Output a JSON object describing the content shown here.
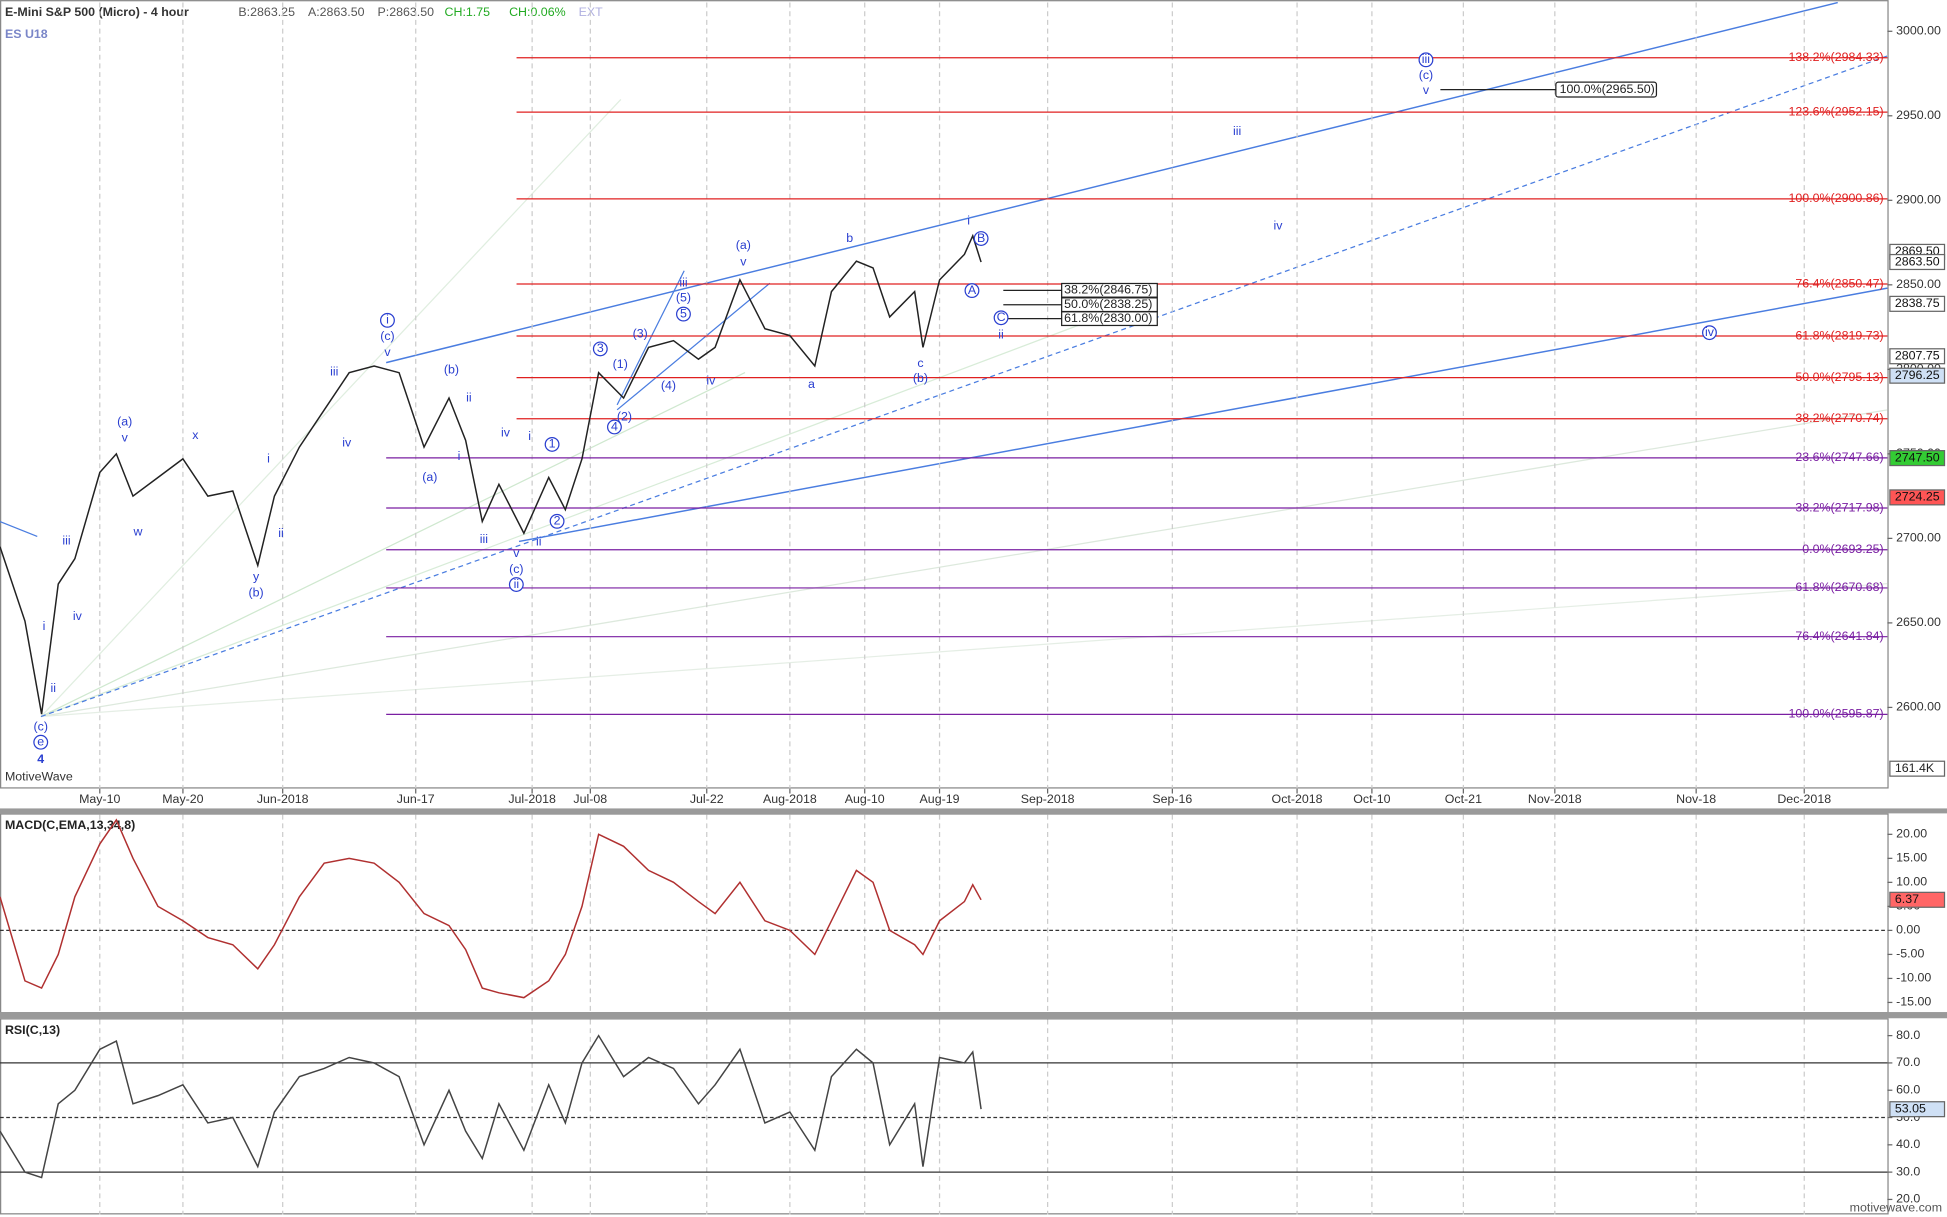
{
  "header": {
    "title": "E-Mini S&P 500 (Micro) - 4 hour",
    "symbol": "ES U18",
    "quote": [
      {
        "text": "B:2863.25",
        "color": "#555555"
      },
      {
        "text": "A:2863.50",
        "color": "#555555"
      },
      {
        "text": "P:2863.50",
        "color": "#555555"
      },
      {
        "text": "CH:1.75",
        "color": "#22aa22"
      },
      {
        "text": "CH:0.06%",
        "color": "#22aa22"
      },
      {
        "text": "EXT",
        "color": "#b0b0e0"
      }
    ],
    "watermark": "MotiveWave",
    "footer": "motivewave.com",
    "volume_label": "161.4K"
  },
  "chart_data": [
    {
      "type": "line",
      "xlim": [
        118,
        345
      ],
      "ylim": [
        2552,
        3017
      ],
      "xticks": [
        {
          "value": 130,
          "label": "May-10"
        },
        {
          "value": 140,
          "label": "May-20"
        },
        {
          "value": 152,
          "label": "Jun-2018"
        },
        {
          "value": 168,
          "label": "Jun-17"
        },
        {
          "value": 182,
          "label": "Jul-2018"
        },
        {
          "value": 189,
          "label": "Jul-08"
        },
        {
          "value": 203,
          "label": "Jul-22"
        },
        {
          "value": 213,
          "label": "Aug-2018"
        },
        {
          "value": 222,
          "label": "Aug-10"
        },
        {
          "value": 231,
          "label": "Aug-19"
        },
        {
          "value": 244,
          "label": "Sep-2018"
        },
        {
          "value": 259,
          "label": "Sep-16"
        },
        {
          "value": 274,
          "label": "Oct-2018"
        },
        {
          "value": 283,
          "label": "Oct-10"
        },
        {
          "value": 294,
          "label": "Oct-21"
        },
        {
          "value": 305,
          "label": "Nov-2018"
        },
        {
          "value": 322,
          "label": "Nov-18"
        },
        {
          "value": 335,
          "label": "Dec-2018"
        }
      ],
      "yticks": [
        {
          "value": 2600,
          "label": "2600.00"
        },
        {
          "value": 2650,
          "label": "2650.00"
        },
        {
          "value": 2700,
          "label": "2700.00"
        },
        {
          "value": 2750,
          "label": "2750.00"
        },
        {
          "value": 2800,
          "label": "2800.00"
        },
        {
          "value": 2850,
          "label": "2850.00"
        },
        {
          "value": 2900,
          "label": "2900.00"
        },
        {
          "value": 2950,
          "label": "2950.00"
        },
        {
          "value": 3000,
          "label": "3000.00"
        }
      ],
      "x": [
        118,
        121,
        123,
        125,
        127,
        130,
        132,
        134,
        137,
        140,
        143,
        146,
        149,
        151,
        154,
        157,
        160,
        163,
        166,
        169,
        172,
        174,
        176,
        178,
        181,
        184,
        186,
        188,
        190,
        193,
        196,
        199,
        202,
        204,
        207,
        210,
        213,
        216,
        218,
        221,
        223,
        225,
        228,
        229,
        231,
        234,
        235,
        236
      ],
      "series": [
        {
          "name": "ES U18",
          "color": "#222222",
          "values": [
            2695,
            2651,
            2596,
            2673,
            2688,
            2739,
            2750,
            2725,
            2736,
            2747,
            2725,
            2728,
            2684,
            2725,
            2754,
            2776,
            2798,
            2802,
            2798,
            2754,
            2783,
            2758,
            2710,
            2732,
            2703,
            2736,
            2717,
            2747,
            2798,
            2783,
            2813,
            2817,
            2806,
            2813,
            2853,
            2824,
            2820,
            2802,
            2846,
            2864,
            2860,
            2831,
            2846,
            2813,
            2853,
            2868,
            2879,
            2863.5
          ]
        }
      ],
      "fibs": [
        {
          "label": "138.2%(2984.33)",
          "value": 2984.33,
          "color": "#e02020"
        },
        {
          "label": "123.6%(2952.15)",
          "value": 2952.15,
          "color": "#e02020"
        },
        {
          "label": "100.0%(2900.86)",
          "value": 2900.86,
          "color": "#e02020"
        },
        {
          "label": "76.4%(2850.47)",
          "value": 2850.47,
          "color": "#e02020"
        },
        {
          "label": "61.8%(2819.73)",
          "value": 2819.73,
          "color": "#e02020"
        },
        {
          "label": "50.0%(2795.13)",
          "value": 2795.13,
          "color": "#e02020"
        },
        {
          "label": "38.2%(2770.74)",
          "value": 2770.74,
          "color": "#e02020"
        },
        {
          "label": "23.6%(2747.66)",
          "value": 2747.66,
          "color": "#7a1fa2"
        },
        {
          "label": "38.2%(2717.98)",
          "value": 2717.98,
          "color": "#7a1fa2"
        },
        {
          "label": "0.0%(2693.25)",
          "value": 2693.25,
          "color": "#7a1fa2"
        },
        {
          "label": "61.8%(2670.68)",
          "value": 2670.68,
          "color": "#7a1fa2"
        },
        {
          "label": "76.4%(2641.84)",
          "value": 2641.84,
          "color": "#7a1fa2"
        },
        {
          "label": "100.0%(2595.87)",
          "value": 2595.87,
          "color": "#7a1fa2"
        }
      ],
      "retrace": [
        {
          "label": "38.2%(2846.75)",
          "value": 2846.75
        },
        {
          "label": "50.0%(2838.25)",
          "value": 2838.25
        },
        {
          "label": "61.8%(2830.00)",
          "value": 2830.0
        }
      ],
      "target": {
        "label": "100.0%(2965.50)",
        "value": 2965.5
      },
      "price_tags": [
        {
          "label": "2869.50",
          "value": 2869.5,
          "color": "#ffffff"
        },
        {
          "label": "2863.50",
          "value": 2863.5,
          "color": "#ffffff"
        },
        {
          "label": "2838.75",
          "value": 2838.75,
          "color": "#ffffff"
        },
        {
          "label": "2807.75",
          "value": 2807.75,
          "color": "#ffffff"
        },
        {
          "label": "2796.25",
          "value": 2796.25,
          "color": "#cfe0f5"
        },
        {
          "label": "2747.50",
          "value": 2747.5,
          "color": "#33cc33"
        },
        {
          "label": "2724.25",
          "value": 2724.25,
          "color": "#ff5555"
        }
      ],
      "annotations": [
        {
          "text": "4",
          "x": 122.9,
          "y": 2569.2,
          "bold": true
        },
        {
          "text": "e",
          "x": 122.9,
          "y": 2579.4,
          "circled": true
        },
        {
          "text": "(c)",
          "x": 122.9,
          "y": 2588.2
        },
        {
          "text": "ii",
          "x": 124.4,
          "y": 2611.0
        },
        {
          "text": "i",
          "x": 123.3,
          "y": 2647.7
        },
        {
          "text": "iv",
          "x": 127.3,
          "y": 2653.6
        },
        {
          "text": "iii",
          "x": 126.0,
          "y": 2698.3
        },
        {
          "text": "(a)",
          "x": 133.0,
          "y": 2768.8
        },
        {
          "text": "v",
          "x": 133.0,
          "y": 2759.3
        },
        {
          "text": "w",
          "x": 134.6,
          "y": 2703.5
        },
        {
          "text": "x",
          "x": 141.5,
          "y": 2760.7
        },
        {
          "text": "y",
          "x": 148.8,
          "y": 2677.1
        },
        {
          "text": "(b)",
          "x": 148.8,
          "y": 2667.5
        },
        {
          "text": "i",
          "x": 150.3,
          "y": 2746.8
        },
        {
          "text": "ii",
          "x": 151.8,
          "y": 2702.8
        },
        {
          "text": "iii",
          "x": 158.2,
          "y": 2798.2
        },
        {
          "text": "iv",
          "x": 159.7,
          "y": 2756.3
        },
        {
          "text": "i",
          "x": 164.6,
          "y": 2829.0,
          "circled": true
        },
        {
          "text": "(c)",
          "x": 164.6,
          "y": 2819.4
        },
        {
          "text": "v",
          "x": 164.6,
          "y": 2809.9
        },
        {
          "text": "(b)",
          "x": 172.3,
          "y": 2799.6
        },
        {
          "text": "ii",
          "x": 174.4,
          "y": 2782.8
        },
        {
          "text": "i",
          "x": 173.2,
          "y": 2748.3
        },
        {
          "text": "(a)",
          "x": 169.7,
          "y": 2735.8
        },
        {
          "text": "iii",
          "x": 176.2,
          "y": 2699.1
        },
        {
          "text": "iv",
          "x": 178.8,
          "y": 2762.2
        },
        {
          "text": "i",
          "x": 181.7,
          "y": 2760.0
        },
        {
          "text": "ii",
          "x": 182.8,
          "y": 2697.6
        },
        {
          "text": "v",
          "x": 180.1,
          "y": 2691.0
        },
        {
          "text": "(c)",
          "x": 180.1,
          "y": 2681.5
        },
        {
          "text": "ii",
          "x": 180.1,
          "y": 2672.7,
          "circled": true
        },
        {
          "text": "1",
          "x": 184.4,
          "y": 2755.6,
          "circled": true
        },
        {
          "text": "2",
          "x": 185.0,
          "y": 2710.1,
          "circled": true
        },
        {
          "text": "3",
          "x": 190.2,
          "y": 2812.1,
          "circled": true
        },
        {
          "text": "(1)",
          "x": 192.6,
          "y": 2802.6
        },
        {
          "text": "4",
          "x": 191.9,
          "y": 2765.9,
          "circled": true
        },
        {
          "text": "(2)",
          "x": 193.1,
          "y": 2771.7
        },
        {
          "text": "(3)",
          "x": 195.0,
          "y": 2820.9
        },
        {
          "text": "5",
          "x": 200.2,
          "y": 2832.7,
          "circled": true
        },
        {
          "text": "(5)",
          "x": 200.2,
          "y": 2842.2
        },
        {
          "text": "iii",
          "x": 200.2,
          "y": 2851.0
        },
        {
          "text": "(4)",
          "x": 198.4,
          "y": 2790.1
        },
        {
          "text": "iv",
          "x": 203.5,
          "y": 2793.0
        },
        {
          "text": "(a)",
          "x": 207.4,
          "y": 2873.0
        },
        {
          "text": "v",
          "x": 207.4,
          "y": 2863.5
        },
        {
          "text": "a",
          "x": 215.6,
          "y": 2790.8
        },
        {
          "text": "b",
          "x": 220.2,
          "y": 2877.4
        },
        {
          "text": "c",
          "x": 228.7,
          "y": 2803.3
        },
        {
          "text": "(b)",
          "x": 228.7,
          "y": 2794.5
        },
        {
          "text": "i",
          "x": 234.5,
          "y": 2887.7
        },
        {
          "text": "B",
          "x": 236.0,
          "y": 2877.4,
          "circled": true
        },
        {
          "text": "A",
          "x": 234.9,
          "y": 2846.6,
          "circled": true
        },
        {
          "text": "C",
          "x": 238.4,
          "y": 2830.5,
          "circled": true
        },
        {
          "text": "ii",
          "x": 238.4,
          "y": 2820.2
        },
        {
          "text": "iii",
          "x": 266.8,
          "y": 2940.6
        },
        {
          "text": "iv",
          "x": 271.7,
          "y": 2884.8
        },
        {
          "text": "iv",
          "x": 323.6,
          "y": 2821.7,
          "circled": true
        },
        {
          "text": "iii",
          "x": 289.5,
          "y": 2983.1,
          "circled": true
        },
        {
          "text": "(c)",
          "x": 289.5,
          "y": 2973.6
        },
        {
          "text": "v",
          "x": 289.5,
          "y": 2964.8
        }
      ]
    },
    {
      "type": "line",
      "title": "MACD(C,EMA,13,34,8)",
      "ylim": [
        -17,
        24.1
      ],
      "yticks": [
        {
          "value": -15,
          "label": "-15.00"
        },
        {
          "value": -10,
          "label": "-10.00"
        },
        {
          "value": -5,
          "label": "-5.00"
        },
        {
          "value": 0,
          "label": "0.00"
        },
        {
          "value": 5,
          "label": "5.00"
        },
        {
          "value": 10,
          "label": "10.00"
        },
        {
          "value": 15,
          "label": "15.00"
        },
        {
          "value": 20,
          "label": "20.00"
        }
      ],
      "levels": [
        0
      ],
      "series": [
        {
          "name": "MACD",
          "color": "#b03030",
          "values": [
            7,
            -10.5,
            -12,
            -5,
            7,
            18,
            23,
            15,
            5,
            2,
            -1.5,
            -3,
            -8,
            -3,
            7,
            14,
            15,
            14,
            10,
            3.5,
            1,
            -4,
            -12,
            -13,
            -14,
            -10.5,
            -5,
            5,
            20,
            17.5,
            12.5,
            10,
            6,
            3.5,
            10,
            2,
            0,
            -5,
            2,
            12.5,
            10,
            0,
            -3,
            -5,
            2,
            6,
            9.5,
            6.37
          ]
        }
      ],
      "price_tags": [
        {
          "label": "6.37",
          "value": 6.37,
          "color": "#ff6666"
        }
      ]
    },
    {
      "type": "line",
      "title": "RSI(C,13)",
      "ylim": [
        14.5,
        85.9
      ],
      "yticks": [
        {
          "value": 20,
          "label": "20.0"
        },
        {
          "value": 30,
          "label": "30.0"
        },
        {
          "value": 40,
          "label": "40.0"
        },
        {
          "value": 50,
          "label": "50.0"
        },
        {
          "value": 60,
          "label": "60.0"
        },
        {
          "value": 70,
          "label": "70.0"
        },
        {
          "value": 80,
          "label": "80.0"
        }
      ],
      "levels": [
        70,
        50,
        30
      ],
      "series": [
        {
          "name": "RSI",
          "color": "#444444",
          "values": [
            45,
            30,
            28,
            55,
            60,
            75,
            78,
            55,
            58,
            62,
            48,
            50,
            32,
            52,
            65,
            68,
            72,
            70,
            65,
            40,
            60,
            45,
            35,
            55,
            38,
            62,
            48,
            70,
            80,
            65,
            72,
            68,
            55,
            62,
            75,
            48,
            52,
            38,
            65,
            75,
            70,
            40,
            55,
            32,
            72,
            70,
            74,
            53.05
          ]
        }
      ],
      "price_tags": [
        {
          "label": "53.05",
          "value": 53.05,
          "color": "#cfe0f5"
        }
      ]
    }
  ]
}
